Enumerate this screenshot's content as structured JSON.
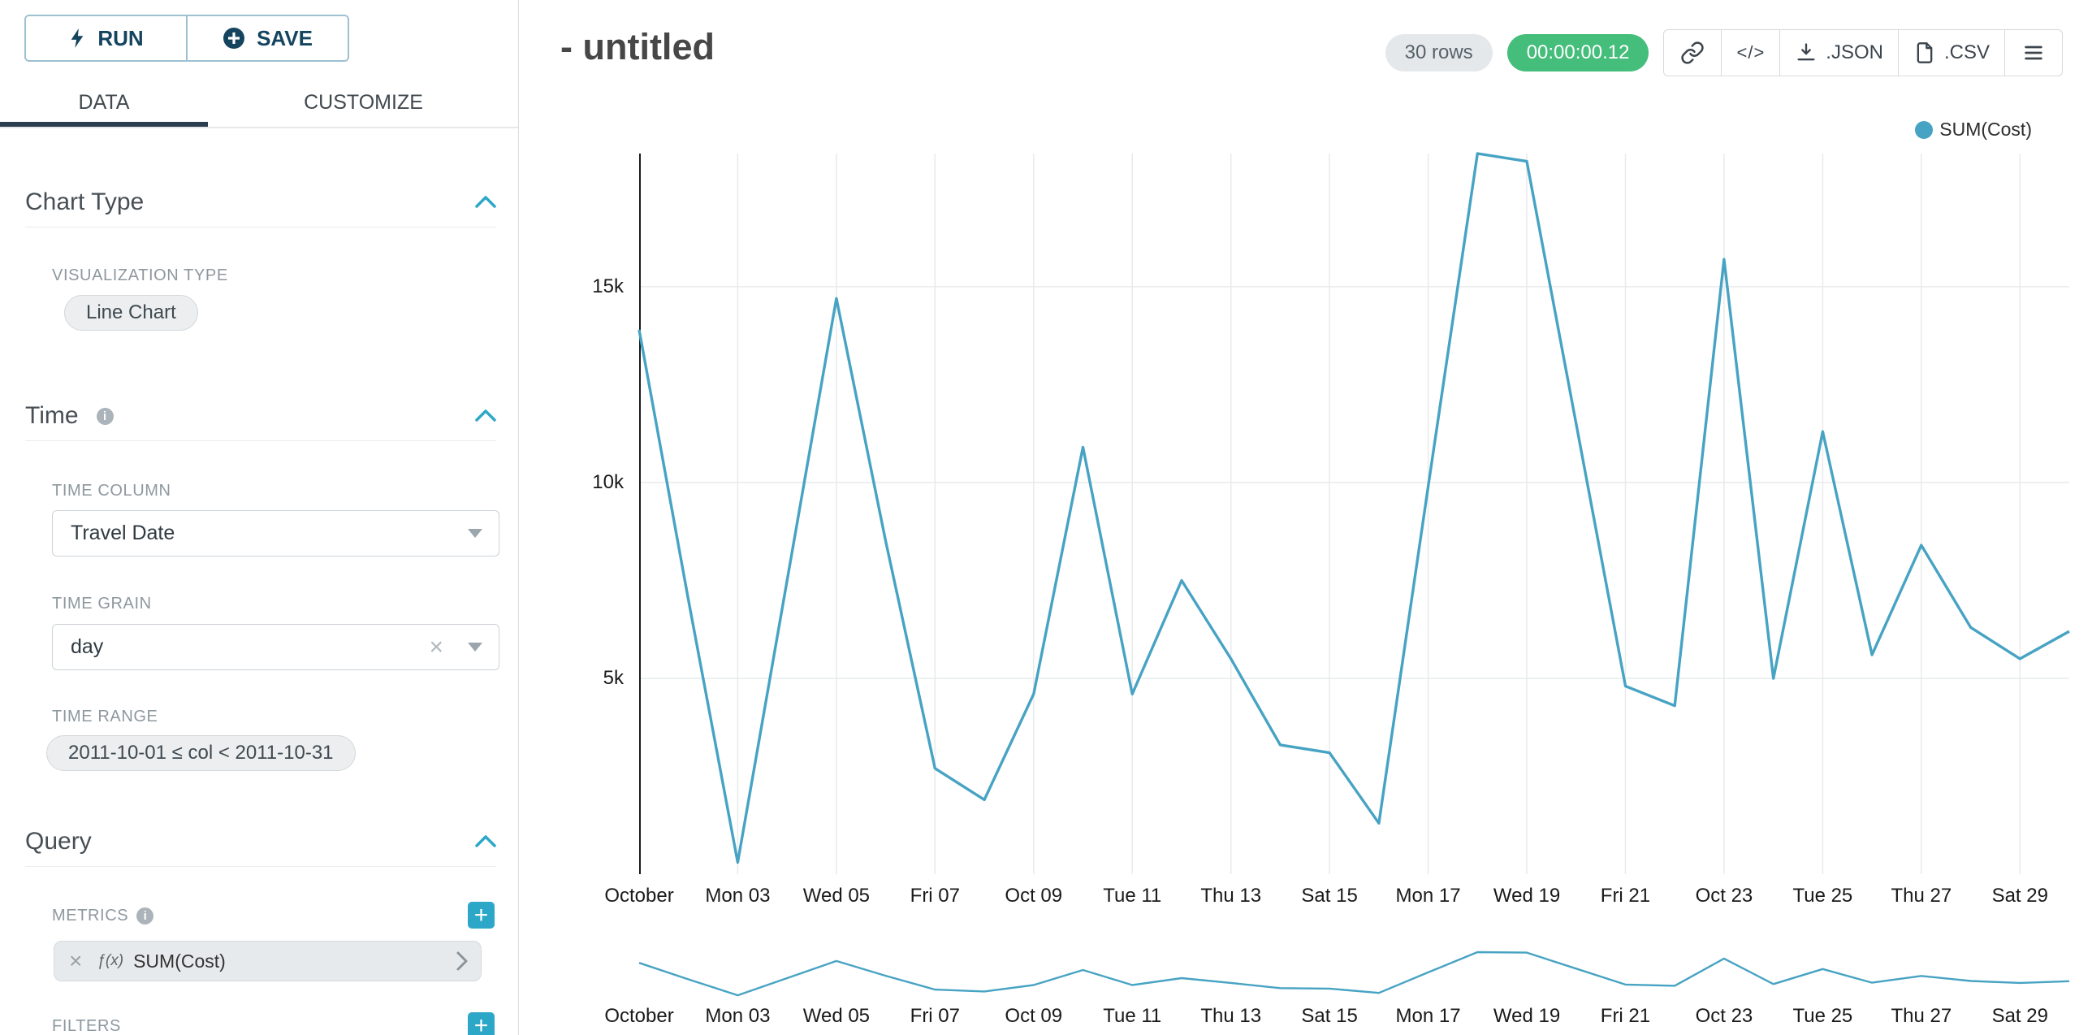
{
  "toolbar": {
    "run_label": "RUN",
    "save_label": "SAVE"
  },
  "tabs": {
    "data": "DATA",
    "customize": "CUSTOMIZE"
  },
  "icons": {
    "info": "i",
    "close": "×",
    "plus": "+",
    "code": "</>"
  },
  "panel": {
    "chart_type": {
      "title": "Chart Type",
      "viz_type_label": "VISUALIZATION TYPE",
      "viz_type_value": "Line Chart"
    },
    "time": {
      "title": "Time",
      "time_column_label": "TIME COLUMN",
      "time_column_value": "Travel Date",
      "time_grain_label": "TIME GRAIN",
      "time_grain_value": "day",
      "time_range_label": "TIME RANGE",
      "time_range_value": "2011-10-01 ≤ col < 2011-10-31"
    },
    "query": {
      "title": "Query",
      "metrics_label": "METRICS",
      "metric_prefix": "ƒ(x)",
      "metric_value": "SUM(Cost)",
      "filters_label": "FILTERS"
    }
  },
  "header": {
    "title": "- untitled",
    "rows_badge": "30 rows",
    "timer_badge": "00:00:00.12",
    "json_label": ".JSON",
    "csv_label": ".CSV"
  },
  "chart_data": {
    "type": "line",
    "title": "",
    "legend_position": "top-right",
    "grid": true,
    "x_tick_labels": [
      "October",
      "Mon 03",
      "Wed 05",
      "Fri 07",
      "Oct 09",
      "Tue 11",
      "Thu 13",
      "Sat 15",
      "Mon 17",
      "Wed 19",
      "Fri 21",
      "Oct 23",
      "Tue 25",
      "Thu 27",
      "Sat 29"
    ],
    "x_tick_every": 2,
    "y_ticks": [
      {
        "value": 5000,
        "label": "5k"
      },
      {
        "value": 10000,
        "label": "10k"
      },
      {
        "value": 15000,
        "label": "15k"
      }
    ],
    "ylim": [
      0,
      18400
    ],
    "series": [
      {
        "name": "SUM(Cost)",
        "color": "#47a3c3",
        "values": [
          13900,
          7000,
          300,
          7500,
          14700,
          8500,
          2700,
          1900,
          4600,
          10900,
          4600,
          7500,
          5500,
          3300,
          3100,
          1300,
          9900,
          18400,
          18200,
          11500,
          4800,
          4300,
          15700,
          5000,
          11300,
          5600,
          8400,
          6300,
          5500,
          6200
        ]
      }
    ],
    "has_mini_range_chart": true
  }
}
